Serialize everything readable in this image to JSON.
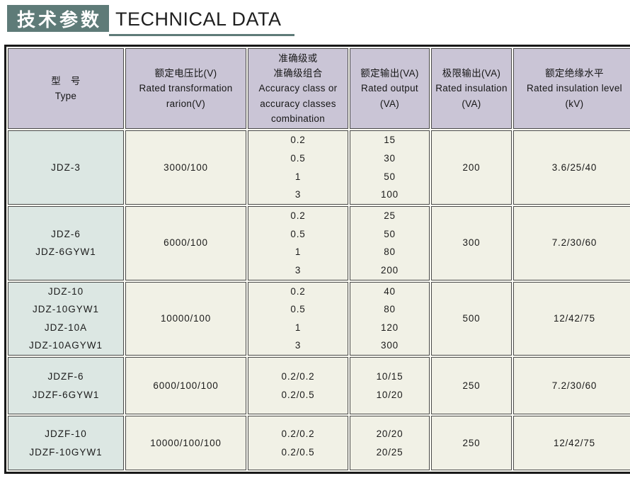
{
  "page": {
    "title_zh": "技术参数",
    "title_en": "TECHNICAL DATA"
  },
  "colors": {
    "title_box_teal": "#5e7b78",
    "header_lavender": "#cac5d6",
    "type_column_green": "#dce7e3",
    "cell_cream": "#f1f1e6",
    "outer_border": "#191919",
    "cell_border": "#4a4a4a"
  },
  "table": {
    "columns": [
      {
        "id": "type",
        "lines": [
          "型　号",
          "Type"
        ]
      },
      {
        "id": "ratio",
        "lines": [
          "额定电压比(V)",
          "Rated transformation",
          "rarion(V)"
        ]
      },
      {
        "id": "accuracy",
        "lines": [
          "准确级或",
          "准确级组合",
          "Accuracy class or",
          "accuracy classes",
          "combination"
        ]
      },
      {
        "id": "rated_output",
        "lines": [
          "额定输出(VA)",
          "Rated output",
          "(VA)"
        ]
      },
      {
        "id": "limit_output",
        "lines": [
          "极限输出(VA)",
          "Rated insulation",
          "(VA)"
        ]
      },
      {
        "id": "insulation_level",
        "lines": [
          "额定绝缘水平",
          "Rated insulation level",
          "(kV)"
        ]
      }
    ],
    "rows": [
      {
        "types": [
          "JDZ-3"
        ],
        "ratio": "3000/100",
        "accuracy": [
          "0.2",
          "0.5",
          "1",
          "3"
        ],
        "output": [
          "15",
          "30",
          "50",
          "100"
        ],
        "limit": "200",
        "insulation": "3.6/25/40"
      },
      {
        "types": [
          "JDZ-6",
          "JDZ-6GYW1"
        ],
        "ratio": "6000/100",
        "accuracy": [
          "0.2",
          "0.5",
          "1",
          "3"
        ],
        "output": [
          "25",
          "50",
          "80",
          "200"
        ],
        "limit": "300",
        "insulation": "7.2/30/60"
      },
      {
        "types": [
          "JDZ-10",
          "JDZ-10GYW1",
          "JDZ-10A",
          "JDZ-10AGYW1"
        ],
        "ratio": "10000/100",
        "accuracy": [
          "0.2",
          "0.5",
          "1",
          "3"
        ],
        "output": [
          "40",
          "80",
          "120",
          "300"
        ],
        "limit": "500",
        "insulation": "12/42/75"
      },
      {
        "types": [
          "JDZF-6",
          "JDZF-6GYW1"
        ],
        "ratio": "6000/100/100",
        "accuracy": [
          "0.2/0.2",
          "0.2/0.5"
        ],
        "output": [
          "10/15",
          "10/20"
        ],
        "limit": "250",
        "insulation": "7.2/30/60"
      },
      {
        "types": [
          "JDZF-10",
          "JDZF-10GYW1"
        ],
        "ratio": "10000/100/100",
        "accuracy": [
          "0.2/0.2",
          "0.2/0.5"
        ],
        "output": [
          "20/20",
          "20/25"
        ],
        "limit": "250",
        "insulation": "12/42/75"
      }
    ]
  }
}
